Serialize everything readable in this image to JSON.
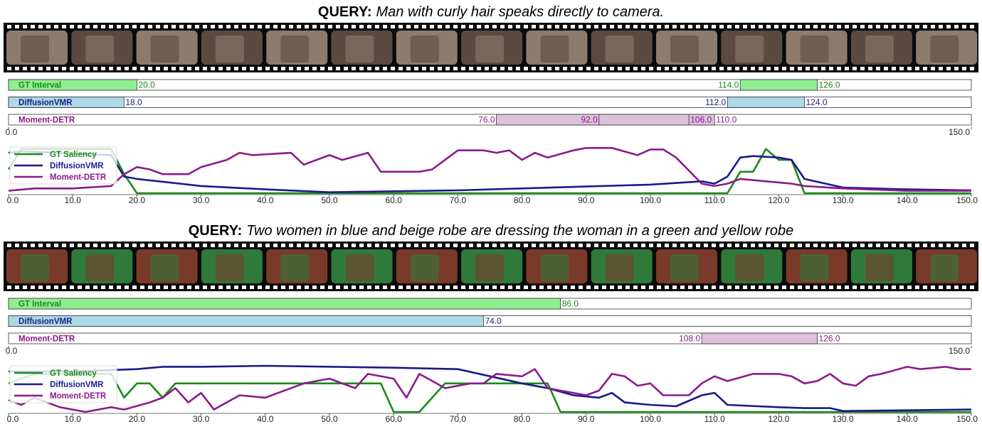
{
  "panels": [
    {
      "query_label": "QUERY:",
      "query": "Man with curly hair speaks directly to camera.",
      "intervals": {
        "xlim": [
          0,
          150
        ],
        "axis_labels": [
          {
            "value": 0,
            "label": "0.0"
          },
          {
            "value": 150,
            "label": "150.0"
          }
        ],
        "rows": [
          {
            "name": "GT Interval",
            "color": "#90ee90",
            "text_color": "#1a8a1a",
            "spans": [
              {
                "start": 0,
                "end": 20,
                "end_label": "20.0"
              },
              {
                "start": 114,
                "end": 126,
                "start_label": "114.0",
                "end_label": "126.0"
              }
            ]
          },
          {
            "name": "DiffusionVMR",
            "color": "#add8e6",
            "text_color": "#1a237e",
            "spans": [
              {
                "start": 0,
                "end": 18,
                "end_label": "18.0"
              },
              {
                "start": 112,
                "end": 124,
                "start_label": "112.0",
                "end_label": "124.0"
              }
            ]
          },
          {
            "name": "Moment-DETR",
            "color": "#dcc0dc",
            "text_color": "#8b1a8b",
            "spans": [
              {
                "start": 76,
                "end": 110,
                "start_label": "76.0",
                "end_label": "110.0"
              },
              {
                "start": 92,
                "end": 106,
                "start_label": "92.0",
                "end_label": "106.0"
              }
            ]
          }
        ]
      }
    },
    {
      "query_label": "QUERY:",
      "query": "Two women in blue and beige robe are dressing the woman in a green and yellow robe",
      "intervals": {
        "xlim": [
          0,
          150
        ],
        "axis_labels": [
          {
            "value": 0,
            "label": "0.0"
          },
          {
            "value": 150,
            "label": "150.0"
          }
        ],
        "rows": [
          {
            "name": "GT Interval",
            "color": "#90ee90",
            "text_color": "#1a8a1a",
            "spans": [
              {
                "start": 0,
                "end": 86,
                "end_label": "86.0"
              }
            ]
          },
          {
            "name": "DiffusionVMR",
            "color": "#add8e6",
            "text_color": "#1a237e",
            "spans": [
              {
                "start": 0,
                "end": 74,
                "end_label": "74.0"
              }
            ]
          },
          {
            "name": "Moment-DETR",
            "color": "#dcc0dc",
            "text_color": "#8b1a8b",
            "spans": [
              {
                "start": 108,
                "end": 126,
                "start_label": "108.0",
                "end_label": "126.0"
              }
            ]
          }
        ]
      }
    }
  ],
  "chart_data": [
    {
      "type": "line",
      "xlim": [
        0,
        150
      ],
      "ylim": [
        0,
        1
      ],
      "xticks": [
        {
          "value": 0,
          "label": "0.0"
        },
        {
          "value": 10,
          "label": "10.0"
        },
        {
          "value": 20,
          "label": "20.0"
        },
        {
          "value": 30,
          "label": "30.0"
        },
        {
          "value": 40,
          "label": "40.0"
        },
        {
          "value": 50,
          "label": "50.0"
        },
        {
          "value": 60,
          "label": "60.0"
        },
        {
          "value": 70,
          "label": "70.0"
        },
        {
          "value": 80,
          "label": "80.0"
        },
        {
          "value": 90,
          "label": "90.0"
        },
        {
          "value": 100,
          "label": "100.0"
        },
        {
          "value": 110,
          "label": "110.0"
        },
        {
          "value": 120,
          "label": "120.0"
        },
        {
          "value": 130,
          "label": "130.0"
        },
        {
          "value": 140,
          "label": "140.0"
        },
        {
          "value": 150,
          "label": "150.0"
        }
      ],
      "legend": "upper left",
      "series": [
        {
          "name": "GT Saliency",
          "color": "#1a8a1a",
          "x": [
            0,
            2,
            16,
            18,
            20,
            112,
            114,
            116,
            118,
            120,
            122,
            124,
            150
          ],
          "values": [
            0.5,
            0.93,
            0.93,
            0.4,
            0,
            0,
            0.45,
            0.45,
            0.93,
            0.7,
            0.7,
            0,
            0
          ]
        },
        {
          "name": "DiffusionVMR",
          "color": "#1a1a8a",
          "x": [
            0,
            2,
            16,
            18,
            20,
            30,
            40,
            50,
            60,
            70,
            80,
            90,
            100,
            108,
            110,
            112,
            114,
            116,
            120,
            122,
            124,
            130,
            140,
            150
          ],
          "values": [
            0.85,
            0.88,
            0.8,
            0.35,
            0.3,
            0.15,
            0.08,
            0.02,
            0.04,
            0.06,
            0.1,
            0.14,
            0.18,
            0.25,
            0.2,
            0.35,
            0.75,
            0.78,
            0.75,
            0.7,
            0.3,
            0.12,
            0.08,
            0.06
          ]
        },
        {
          "name": "Moment-DETR",
          "color": "#8b1a8b",
          "x": [
            0,
            4,
            10,
            16,
            18,
            20,
            22,
            24,
            28,
            30,
            34,
            36,
            38,
            44,
            46,
            50,
            52,
            56,
            58,
            64,
            66,
            68,
            70,
            74,
            76,
            78,
            80,
            82,
            84,
            88,
            90,
            94,
            98,
            100,
            102,
            104,
            108,
            110,
            112,
            114,
            118,
            122,
            124,
            130,
            140,
            150
          ],
          "values": [
            0.05,
            0.1,
            0.1,
            0.15,
            0.4,
            0.55,
            0.5,
            0.4,
            0.4,
            0.55,
            0.7,
            0.85,
            0.8,
            0.85,
            0.6,
            0.8,
            0.7,
            0.85,
            0.45,
            0.45,
            0.5,
            0.7,
            0.9,
            0.9,
            0.85,
            0.9,
            0.7,
            0.85,
            0.75,
            0.9,
            0.95,
            0.95,
            0.8,
            0.92,
            0.92,
            0.75,
            0.2,
            0.15,
            0.2,
            0.3,
            0.25,
            0.2,
            0.15,
            0.1,
            0.05,
            0.05
          ]
        }
      ]
    },
    {
      "type": "line",
      "xlim": [
        0,
        150
      ],
      "ylim": [
        0,
        1
      ],
      "xticks": [
        {
          "value": 0,
          "label": "0.0"
        },
        {
          "value": 10,
          "label": "10.0"
        },
        {
          "value": 20,
          "label": "20.0"
        },
        {
          "value": 30,
          "label": "30.0"
        },
        {
          "value": 40,
          "label": "40.0"
        },
        {
          "value": 50,
          "label": "50.0"
        },
        {
          "value": 60,
          "label": "60.0"
        },
        {
          "value": 70,
          "label": "70.0"
        },
        {
          "value": 80,
          "label": "80.0"
        },
        {
          "value": 90,
          "label": "90.0"
        },
        {
          "value": 100,
          "label": "100.0"
        },
        {
          "value": 110,
          "label": "110.0"
        },
        {
          "value": 120,
          "label": "120.0"
        },
        {
          "value": 130,
          "label": "130.0"
        },
        {
          "value": 140,
          "label": "140.0"
        },
        {
          "value": 150,
          "label": "150.0"
        }
      ],
      "legend": "upper left",
      "series": [
        {
          "name": "GT Saliency",
          "color": "#1a8a1a",
          "x": [
            0,
            4,
            16,
            18,
            20,
            22,
            24,
            26,
            58,
            60,
            64,
            68,
            84,
            86,
            150
          ],
          "values": [
            0.6,
            0.8,
            0.8,
            0.3,
            0.6,
            0.6,
            0.3,
            0.6,
            0.6,
            0,
            0,
            0.6,
            0.6,
            0,
            0
          ]
        },
        {
          "name": "DiffusionVMR",
          "color": "#1a1a8a",
          "x": [
            0,
            10,
            20,
            24,
            30,
            40,
            60,
            70,
            80,
            84,
            88,
            92,
            94,
            96,
            100,
            104,
            108,
            110,
            112,
            120,
            124,
            128,
            130,
            150
          ],
          "values": [
            0.85,
            0.85,
            0.9,
            0.95,
            0.95,
            0.97,
            0.93,
            0.9,
            0.6,
            0.5,
            0.35,
            0.3,
            0.4,
            0.2,
            0.15,
            0.12,
            0.35,
            0.4,
            0.15,
            0.1,
            0.08,
            0.08,
            0.02,
            0.05
          ]
        },
        {
          "name": "Moment-DETR",
          "color": "#8b1a8b",
          "x": [
            0,
            2,
            4,
            8,
            12,
            16,
            18,
            22,
            24,
            26,
            28,
            30,
            32,
            36,
            40,
            42,
            46,
            50,
            54,
            56,
            60,
            62,
            64,
            68,
            72,
            74,
            76,
            80,
            82,
            84,
            86,
            90,
            92,
            94,
            96,
            98,
            100,
            102,
            106,
            108,
            110,
            112,
            116,
            120,
            122,
            124,
            126,
            128,
            130,
            132,
            134,
            136,
            140,
            142,
            146,
            148,
            150
          ],
          "values": [
            0.25,
            0.15,
            0.3,
            0.1,
            0,
            0.1,
            0.05,
            0.2,
            0.3,
            0.5,
            0.2,
            0.4,
            0.05,
            0.35,
            0.3,
            0.4,
            0.6,
            0.7,
            0.5,
            0.8,
            0.7,
            0.3,
            0.8,
            0.5,
            0.6,
            0.6,
            0.8,
            0.75,
            0.9,
            0.5,
            0.45,
            0.35,
            0.45,
            0.8,
            0.75,
            0.55,
            0.6,
            0.35,
            0.35,
            0.6,
            0.75,
            0.65,
            0.8,
            0.8,
            0.75,
            0.6,
            0.65,
            0.8,
            0.6,
            0.55,
            0.75,
            0.8,
            0.95,
            0.9,
            0.95,
            0.9,
            0.9
          ]
        }
      ]
    }
  ]
}
